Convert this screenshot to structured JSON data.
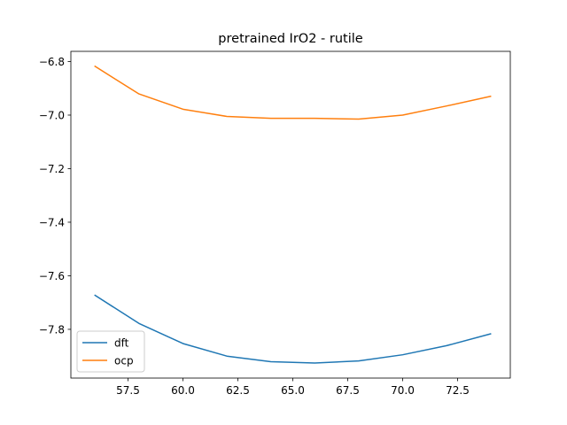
{
  "chart_data": {
    "type": "line",
    "title": "pretrained IrO2 - rutile",
    "xlabel": "",
    "ylabel": "",
    "xlim": [
      54.9,
      74.9
    ],
    "ylim": [
      -7.982,
      -6.762
    ],
    "x_ticks": [
      57.5,
      60.0,
      62.5,
      65.0,
      67.5,
      70.0,
      72.5
    ],
    "y_ticks": [
      -7.8,
      -7.6,
      -7.4,
      -7.2,
      -7.0,
      -6.8
    ],
    "x": [
      56,
      58,
      60,
      62,
      64,
      66,
      68,
      70,
      72,
      74
    ],
    "series": [
      {
        "name": "dft",
        "color": "#1f77b4",
        "values": [
          -7.673,
          -7.778,
          -7.853,
          -7.9,
          -7.921,
          -7.926,
          -7.918,
          -7.895,
          -7.861,
          -7.817
        ]
      },
      {
        "name": "ocp",
        "color": "#ff7f0e",
        "values": [
          -6.818,
          -6.921,
          -6.978,
          -7.005,
          -7.012,
          -7.012,
          -7.015,
          -7.0,
          -6.966,
          -6.93
        ]
      }
    ],
    "grid": false,
    "legend_position": "lower-left"
  }
}
